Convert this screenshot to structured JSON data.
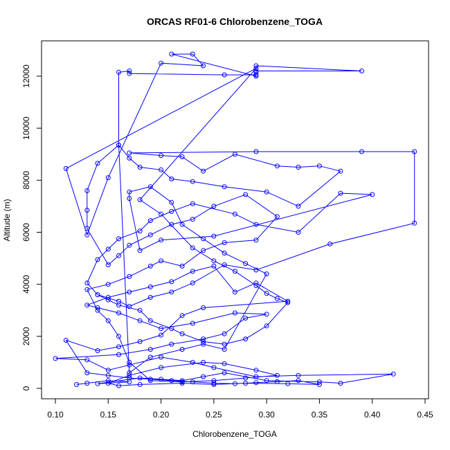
{
  "chart_data": {
    "type": "line",
    "title": "ORCAS RF01-6 Chlorobenzene_TOGA",
    "xlabel": "Chlorobenzene_TOGA",
    "ylabel": "Altitude (m)",
    "xlim": [
      0.1,
      0.44
    ],
    "ylim": [
      100,
      12850
    ],
    "x_ticks": [
      0.1,
      0.15,
      0.2,
      0.25,
      0.3,
      0.35,
      0.4,
      0.45
    ],
    "x_tick_labels": [
      "0.10",
      "0.15",
      "0.20",
      "0.25",
      "0.30",
      "0.35",
      "0.40",
      "0.45"
    ],
    "y_ticks": [
      0,
      2000,
      4000,
      6000,
      8000,
      10000,
      12000
    ],
    "y_tick_labels": [
      "0",
      "2000",
      "4000",
      "6000",
      "8000",
      "10000",
      "12000"
    ],
    "grid": false,
    "series": [
      {
        "color": "#0000ff",
        "marker": "open-circle",
        "points": [
          [
            0.12,
            150
          ],
          [
            0.13,
            200
          ],
          [
            0.15,
            300
          ],
          [
            0.17,
            250
          ],
          [
            0.14,
            180
          ],
          [
            0.18,
            400
          ],
          [
            0.2,
            350
          ],
          [
            0.22,
            300
          ],
          [
            0.24,
            450
          ],
          [
            0.26,
            600
          ],
          [
            0.3,
            300
          ],
          [
            0.35,
            250
          ],
          [
            0.37,
            200
          ],
          [
            0.42,
            550
          ],
          [
            0.33,
            500
          ],
          [
            0.29,
            450
          ],
          [
            0.25,
            800
          ],
          [
            0.23,
            1000
          ],
          [
            0.2,
            1200
          ],
          [
            0.17,
            900
          ],
          [
            0.15,
            700
          ],
          [
            0.13,
            1100
          ],
          [
            0.1,
            1150
          ],
          [
            0.16,
            1300
          ],
          [
            0.19,
            1500
          ],
          [
            0.21,
            1700
          ],
          [
            0.24,
            1900
          ],
          [
            0.26,
            2100
          ],
          [
            0.28,
            2700
          ],
          [
            0.3,
            2850
          ],
          [
            0.27,
            2900
          ],
          [
            0.23,
            2500
          ],
          [
            0.2,
            2300
          ],
          [
            0.18,
            2600
          ],
          [
            0.16,
            2900
          ],
          [
            0.14,
            3100
          ],
          [
            0.13,
            3200
          ],
          [
            0.15,
            3500
          ],
          [
            0.17,
            3700
          ],
          [
            0.19,
            3900
          ],
          [
            0.21,
            4100
          ],
          [
            0.23,
            4500
          ],
          [
            0.25,
            4700
          ],
          [
            0.27,
            3700
          ],
          [
            0.29,
            4050
          ],
          [
            0.32,
            3350
          ],
          [
            0.24,
            3100
          ],
          [
            0.22,
            2800
          ],
          [
            0.2,
            2050
          ],
          [
            0.18,
            1800
          ],
          [
            0.16,
            1600
          ],
          [
            0.14,
            1450
          ],
          [
            0.11,
            1850
          ],
          [
            0.13,
            600
          ],
          [
            0.15,
            500
          ],
          [
            0.17,
            400
          ],
          [
            0.19,
            350
          ],
          [
            0.21,
            300
          ],
          [
            0.23,
            250
          ],
          [
            0.25,
            200
          ],
          [
            0.27,
            180
          ],
          [
            0.29,
            220
          ],
          [
            0.31,
            260
          ],
          [
            0.33,
            300
          ],
          [
            0.35,
            150
          ],
          [
            0.32,
            180
          ],
          [
            0.28,
            200
          ],
          [
            0.25,
            150
          ],
          [
            0.22,
            200
          ],
          [
            0.18,
            150
          ],
          [
            0.16,
            100
          ],
          [
            0.15,
            200
          ],
          [
            0.17,
            500
          ],
          [
            0.2,
            800
          ],
          [
            0.24,
            1000
          ],
          [
            0.26,
            950
          ],
          [
            0.29,
            700
          ],
          [
            0.31,
            500
          ],
          [
            0.28,
            400
          ],
          [
            0.25,
            300
          ],
          [
            0.22,
            250
          ],
          [
            0.19,
            300
          ],
          [
            0.17,
            1000
          ],
          [
            0.16,
            2000
          ],
          [
            0.15,
            2600
          ],
          [
            0.14,
            3000
          ],
          [
            0.13,
            3800
          ],
          [
            0.15,
            4000
          ],
          [
            0.17,
            4300
          ],
          [
            0.19,
            4700
          ],
          [
            0.2,
            4900
          ],
          [
            0.22,
            4700
          ],
          [
            0.24,
            5300
          ],
          [
            0.26,
            5600
          ],
          [
            0.29,
            5700
          ],
          [
            0.31,
            6600
          ],
          [
            0.28,
            7450
          ],
          [
            0.25,
            7000
          ],
          [
            0.23,
            6500
          ],
          [
            0.21,
            6300
          ],
          [
            0.19,
            5900
          ],
          [
            0.17,
            5500
          ],
          [
            0.16,
            5100
          ],
          [
            0.15,
            4750
          ],
          [
            0.13,
            6150
          ],
          [
            0.13,
            6850
          ],
          [
            0.13,
            7600
          ],
          [
            0.14,
            8650
          ],
          [
            0.16,
            9350
          ],
          [
            0.17,
            8850
          ],
          [
            0.18,
            8500
          ],
          [
            0.2,
            8400
          ],
          [
            0.21,
            8050
          ],
          [
            0.23,
            7950
          ],
          [
            0.26,
            7750
          ],
          [
            0.3,
            7550
          ],
          [
            0.33,
            7000
          ],
          [
            0.37,
            8350
          ],
          [
            0.35,
            8550
          ],
          [
            0.33,
            8500
          ],
          [
            0.31,
            8550
          ],
          [
            0.27,
            9000
          ],
          [
            0.24,
            8350
          ],
          [
            0.22,
            8900
          ],
          [
            0.2,
            8950
          ],
          [
            0.17,
            9050
          ],
          [
            0.29,
            9100
          ],
          [
            0.39,
            9100
          ],
          [
            0.44,
            9100
          ],
          [
            0.44,
            6350
          ],
          [
            0.36,
            5550
          ],
          [
            0.29,
            4550
          ],
          [
            0.26,
            4750
          ],
          [
            0.23,
            4050
          ],
          [
            0.21,
            3700
          ],
          [
            0.19,
            3500
          ],
          [
            0.17,
            3150
          ],
          [
            0.16,
            3350
          ],
          [
            0.14,
            3600
          ],
          [
            0.13,
            4050
          ],
          [
            0.14,
            4950
          ],
          [
            0.15,
            5350
          ],
          [
            0.16,
            5750
          ],
          [
            0.18,
            6050
          ],
          [
            0.19,
            6450
          ],
          [
            0.21,
            6800
          ],
          [
            0.23,
            7100
          ],
          [
            0.27,
            6700
          ],
          [
            0.29,
            6300
          ],
          [
            0.33,
            6000
          ],
          [
            0.37,
            7500
          ],
          [
            0.4,
            7450
          ],
          [
            0.25,
            5850
          ],
          [
            0.2,
            5700
          ],
          [
            0.18,
            5300
          ],
          [
            0.17,
            7300
          ],
          [
            0.17,
            7550
          ],
          [
            0.19,
            7750
          ],
          [
            0.21,
            7150
          ],
          [
            0.22,
            6300
          ],
          [
            0.24,
            5750
          ],
          [
            0.26,
            5200
          ],
          [
            0.28,
            4800
          ],
          [
            0.3,
            4400
          ],
          [
            0.26,
            1500
          ],
          [
            0.24,
            1700
          ],
          [
            0.22,
            1500
          ],
          [
            0.19,
            1200
          ],
          [
            0.17,
            600
          ],
          [
            0.16,
            9350
          ],
          [
            0.16,
            12150
          ],
          [
            0.17,
            12200
          ],
          [
            0.17,
            12100
          ],
          [
            0.26,
            12050
          ],
          [
            0.29,
            12050
          ],
          [
            0.29,
            12400
          ],
          [
            0.39,
            12200
          ],
          [
            0.29,
            12200
          ],
          [
            0.29,
            12150
          ],
          [
            0.29,
            12000
          ],
          [
            0.21,
            12850
          ],
          [
            0.23,
            12850
          ],
          [
            0.24,
            12400
          ],
          [
            0.2,
            12500
          ],
          [
            0.15,
            8100
          ],
          [
            0.13,
            5900
          ],
          [
            0.11,
            8450
          ],
          [
            0.29,
            12300
          ],
          [
            0.18,
            7250
          ],
          [
            0.2,
            6700
          ],
          [
            0.23,
            5400
          ],
          [
            0.25,
            4900
          ],
          [
            0.27,
            4500
          ],
          [
            0.29,
            3950
          ],
          [
            0.3,
            3650
          ],
          [
            0.31,
            3450
          ],
          [
            0.32,
            3300
          ],
          [
            0.3,
            2400
          ],
          [
            0.28,
            1900
          ],
          [
            0.26,
            1700
          ],
          [
            0.24,
            1800
          ],
          [
            0.22,
            2100
          ],
          [
            0.21,
            2300
          ],
          [
            0.19,
            2600
          ],
          [
            0.18,
            3000
          ],
          [
            0.16,
            3200
          ],
          [
            0.15,
            3400
          ],
          [
            0.14,
            3600
          ]
        ]
      }
    ]
  }
}
